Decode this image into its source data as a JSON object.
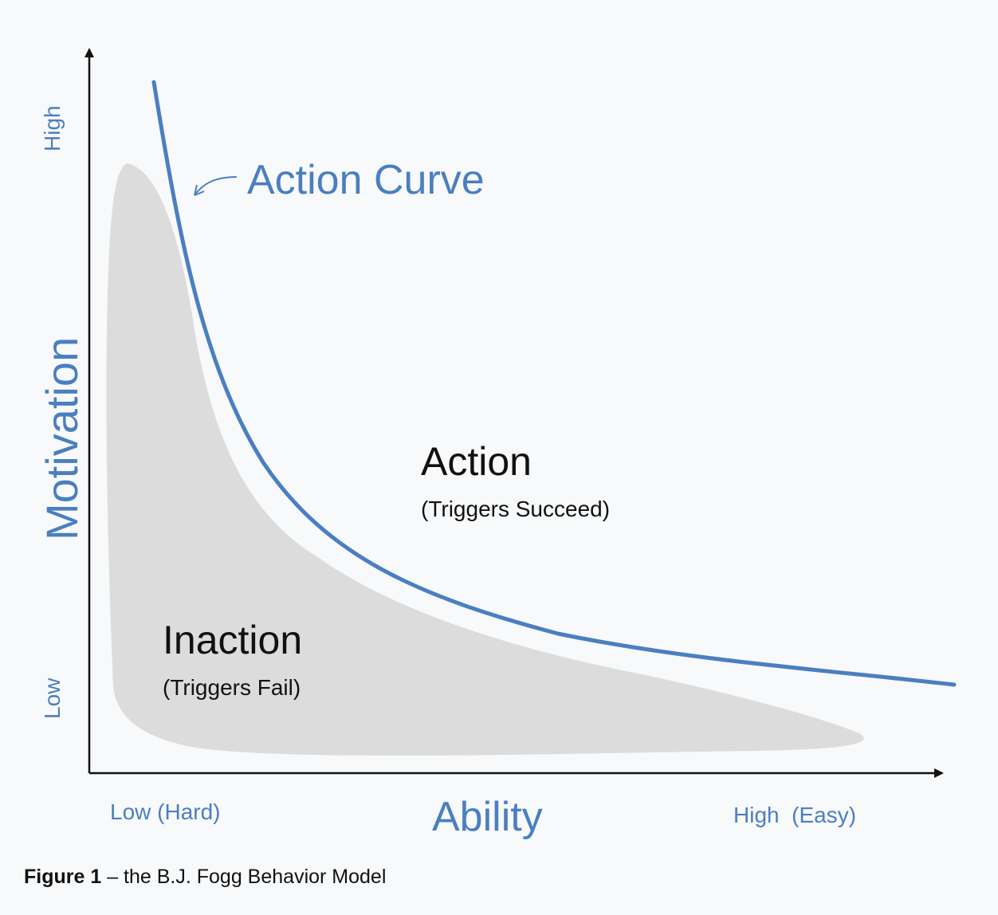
{
  "diagram": {
    "curve_label": "Action Curve",
    "y_axis": {
      "label": "Motivation",
      "high": "High",
      "low": "Low"
    },
    "x_axis": {
      "label": "Ability",
      "low": "Low (Hard)",
      "high": "High  (Easy)"
    },
    "regions": {
      "action": {
        "title": "Action",
        "subtitle": "(Triggers Succeed)"
      },
      "inaction": {
        "title": "Inaction",
        "subtitle": "(Triggers Fail)"
      }
    },
    "colors": {
      "curve": "#4a7fc1",
      "region_fill": "#dcdcdc",
      "axis": "#111111",
      "background": "#f8f9fa"
    }
  },
  "caption": {
    "prefix": "Figure 1",
    "text": " – the B.J. Fogg Behavior Model"
  }
}
